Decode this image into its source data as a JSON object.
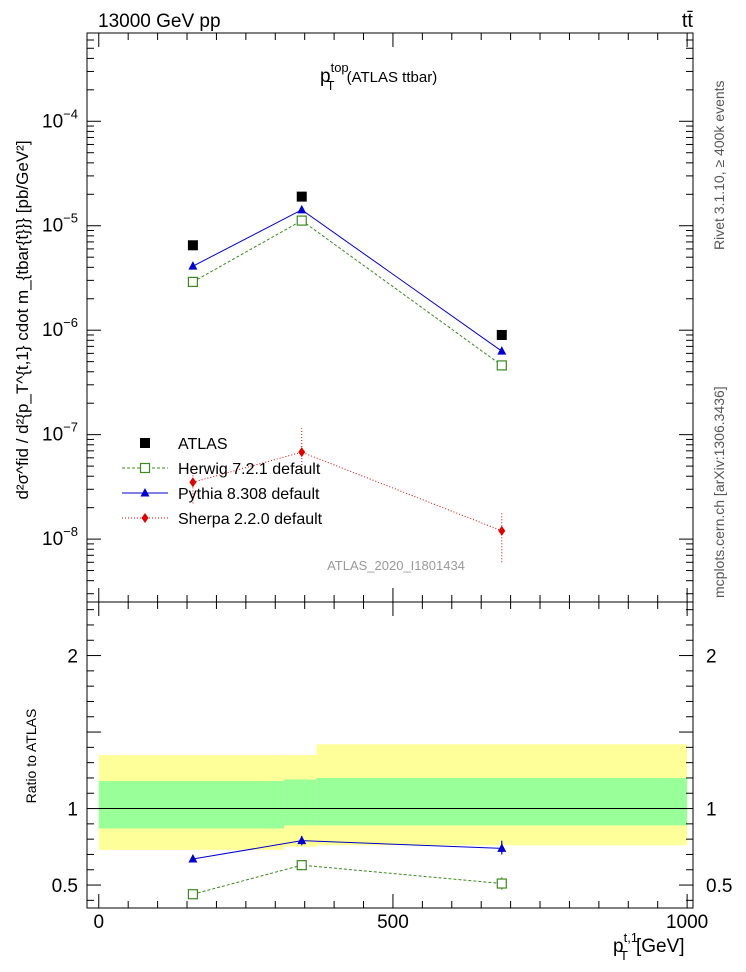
{
  "header": {
    "left": "13000 GeV pp",
    "right": "tt̄"
  },
  "side_labels": {
    "version": "Rivet 3.1.10, ≥ 400k events",
    "source": "mcplots.cern.ch [arXiv:1306.3436]"
  },
  "chart_data": [
    {
      "type": "scatter",
      "title_main": "p",
      "title_sup": "top",
      "title_sub": "T",
      "title_rest": "(ATLAS ttbar)",
      "ylabel": "d²σ^fid / d²{p_T^{t,1} cdot m_{tbar{t}}} [pb/GeV²]",
      "watermark": "ATLAS_2020_I1801434",
      "yscale": "log",
      "xlim": [
        -20,
        1010
      ],
      "ylim": [
        2.5e-09,
        0.0007
      ],
      "y_ticks": [
        {
          "value": 1e-08,
          "base": "10",
          "exp": "−8"
        },
        {
          "value": 1e-07,
          "base": "10",
          "exp": "−7"
        },
        {
          "value": 1e-06,
          "base": "10",
          "exp": "−6"
        },
        {
          "value": 1e-05,
          "base": "10",
          "exp": "−5"
        },
        {
          "value": 0.0001,
          "base": "10",
          "exp": "−4"
        }
      ],
      "series": [
        {
          "name": "ATLAS",
          "color": "#000000",
          "marker": "square-filled",
          "x": [
            160,
            345,
            685
          ],
          "y": [
            6.5e-06,
            1.9e-05,
            9e-07
          ]
        },
        {
          "name": "Herwig 7.2.1 default",
          "color": "#3a8a1e",
          "marker": "square-open",
          "dash": "3,2",
          "x": [
            160,
            345,
            685
          ],
          "y": [
            2.9e-06,
            1.12e-05,
            4.6e-07
          ]
        },
        {
          "name": "Pythia 8.308 default",
          "color": "#0000cc",
          "marker": "triangle",
          "x": [
            160,
            345,
            685
          ],
          "y": [
            4.1e-06,
            1.42e-05,
            6.3e-07
          ]
        },
        {
          "name": "Sherpa 2.2.0 default",
          "color": "#dd0000",
          "marker": "diamond",
          "dash": "1,2",
          "x": [
            160,
            345,
            685
          ],
          "y": [
            3.5e-08,
            6.8e-08,
            1.2e-08
          ],
          "yerr_low": [
            2.2e-08,
            4.2e-08,
            6e-09
          ],
          "yerr_high": [
            5e-08,
            1.15e-07,
            1.8e-08
          ]
        }
      ]
    },
    {
      "type": "scatter",
      "ylabel": "Ratio to ATLAS",
      "xlabel_main": "p",
      "xlabel_sup": "t,1",
      "xlabel_sub": "T",
      "xlabel_unit": "[GeV]",
      "xlim": [
        -20,
        1010
      ],
      "ylim": [
        0.35,
        2.35
      ],
      "x_ticks": [
        "0",
        "500",
        "1000"
      ],
      "y_ticks": [
        "0.5",
        "1",
        "2"
      ],
      "bands": [
        {
          "x0": 0,
          "x1": 315,
          "y_lo": 0.73,
          "y_hi": 1.35,
          "y_lo_inner": 0.87,
          "y_hi_inner": 1.18
        },
        {
          "x0": 315,
          "x1": 370,
          "y_lo": 0.75,
          "y_hi": 1.35,
          "y_lo_inner": 0.89,
          "y_hi_inner": 1.19
        },
        {
          "x0": 370,
          "x1": 1000,
          "y_lo": 0.76,
          "y_hi": 1.42,
          "y_lo_inner": 0.89,
          "y_hi_inner": 1.2
        }
      ],
      "series": [
        {
          "name": "Herwig 7.2.1 default",
          "color": "#3a8a1e",
          "marker": "square-open",
          "dash": "3,2",
          "x": [
            160,
            345,
            685
          ],
          "y": [
            0.44,
            0.63,
            0.51
          ],
          "yerr_low": [
            0.01,
            0.02,
            0.04
          ],
          "yerr_high": [
            0.01,
            0.02,
            0.04
          ]
        },
        {
          "name": "Pythia 8.308 default",
          "color": "#0000cc",
          "marker": "triangle",
          "x": [
            160,
            345,
            685
          ],
          "y": [
            0.67,
            0.79,
            0.74
          ],
          "yerr_low": [
            0.02,
            0.03,
            0.04
          ],
          "yerr_high": [
            0.02,
            0.03,
            0.05
          ]
        }
      ]
    }
  ]
}
